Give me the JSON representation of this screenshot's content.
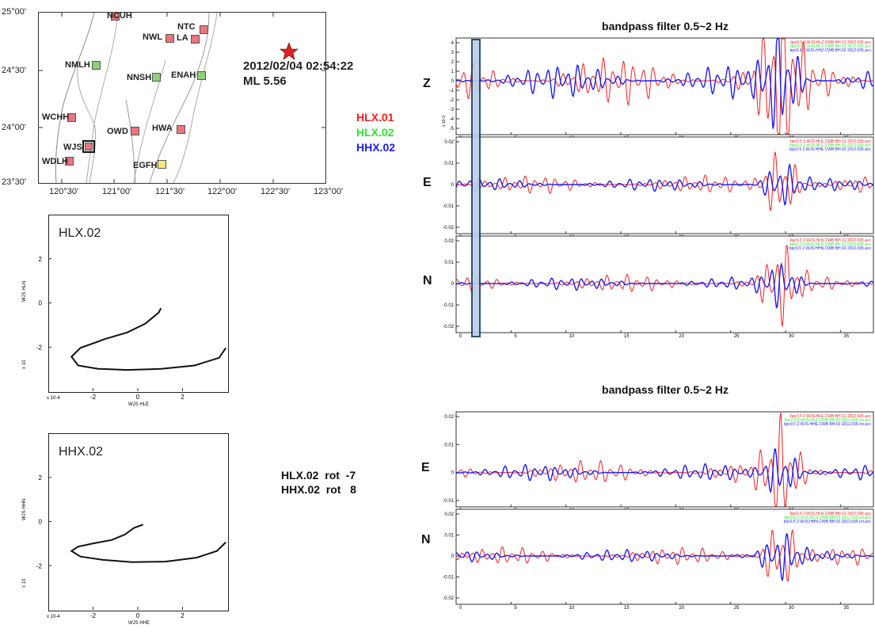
{
  "map": {
    "lat_labels": [
      "25°00'",
      "24°30'",
      "24°00'",
      "23°30'"
    ],
    "lon_labels": [
      "120°30'",
      "121°00'",
      "121°30'",
      "122°00'",
      "122°30'",
      "123°00'"
    ],
    "stations": [
      {
        "name": "NCUH",
        "color": "#e8757f"
      },
      {
        "name": "NTC",
        "color": "#e8757f"
      },
      {
        "name": "NWL",
        "color": "#e8757f"
      },
      {
        "name": "LA",
        "color": "#e8757f"
      },
      {
        "name": "NMLH",
        "color": "#8fd07a"
      },
      {
        "name": "NNSH",
        "color": "#8fd07a"
      },
      {
        "name": "ENAH",
        "color": "#8fd07a"
      },
      {
        "name": "WCHH",
        "color": "#e8757f"
      },
      {
        "name": "OWD",
        "color": "#e8757f"
      },
      {
        "name": "HWA",
        "color": "#e8757f"
      },
      {
        "name": "WJS",
        "color": "#e8757f"
      },
      {
        "name": "EGFH",
        "color": "#f3ea7a"
      },
      {
        "name": "WDLH",
        "color": "#e8757f"
      }
    ],
    "event_time": "2012/02/04 02:54:22",
    "event_magnitude": "ML 5.56"
  },
  "legend": [
    {
      "label": "HLX.01",
      "color": "#ff1a1a"
    },
    {
      "label": "HLX.02",
      "color": "#2ee62e"
    },
    {
      "label": "HHX.02",
      "color": "#1a1aff"
    }
  ],
  "rotation": {
    "line1": "HLX.02  rot  -7",
    "line2": "HHX.02  rot   8"
  },
  "chart_data": [
    {
      "type": "line",
      "title": "HLX.02",
      "xlabel": "WJS HLE",
      "ylabel": "WJS HLN",
      "x_exponent": "x 10-4",
      "y_exponent": "x 10",
      "x_ticks": [
        -2,
        0,
        2
      ],
      "y_ticks": [
        2,
        0,
        -2
      ],
      "x": [
        1.0,
        0.9,
        0.3,
        -0.5,
        -1.5,
        -2.6,
        -3.0,
        -2.7,
        -1.8,
        -0.5,
        1.0,
        2.5,
        3.6,
        3.9
      ],
      "y": [
        -0.2,
        -0.4,
        -0.9,
        -1.3,
        -1.6,
        -2.0,
        -2.4,
        -2.8,
        -2.95,
        -3.0,
        -2.95,
        -2.8,
        -2.45,
        -2.0
      ]
    },
    {
      "type": "line",
      "title": "HHX.02",
      "xlabel": "WJS HHE",
      "ylabel": "WJS HHN",
      "x_exponent": "x 10-4",
      "y_exponent": "x 10",
      "x_ticks": [
        -2,
        0,
        2
      ],
      "y_ticks": [
        2,
        0,
        -2
      ],
      "x": [
        0.2,
        -0.2,
        -0.6,
        -1.2,
        -2.0,
        -2.7,
        -3.0,
        -2.6,
        -1.6,
        -0.3,
        1.2,
        2.6,
        3.5,
        3.9
      ],
      "y": [
        -0.1,
        -0.25,
        -0.55,
        -0.8,
        -0.95,
        -1.1,
        -1.3,
        -1.55,
        -1.7,
        -1.8,
        -1.78,
        -1.6,
        -1.3,
        -0.9
      ]
    },
    {
      "type": "line",
      "title": "bandpass filter 0.5~2 Hz",
      "panels": [
        {
          "component": "Z",
          "y_ticks": [
            4,
            3,
            2,
            1,
            0,
            -1,
            -2,
            -3,
            -4,
            -5
          ],
          "y_exponent": "x 10-3",
          "legend": [
            "bpc0.5  2.WJS.HLZ.CWB  BH.01  2012.035.acc",
            "bpc0.5  2.WJS.HLZ.CWB  BH.02  2012.035.acc",
            "bpc0.5  2.WJS.HHZ.CWB  BH.02  2012.035.acc"
          ]
        },
        {
          "component": "E",
          "y_ticks": [
            0.02,
            0.01,
            0.0,
            -0.01,
            -0.02
          ],
          "legend": [
            "bpc0.5  2.WJS.HLE.CWB  BH.01  2012.035.acc",
            "bpc0.5  2.WJS.HLE.CWB  BH.02  2012.035.acc",
            "bpc0.5  2.WJS.HHE.CWB  BH.02  2012.035.acc"
          ]
        },
        {
          "component": "N",
          "y_ticks": [
            0.02,
            0.01,
            0.0,
            -0.01,
            -0.02
          ],
          "legend": [
            "bpc0.5  2.WJS.HLN.CWB  BH.01  2012.035.acc",
            "bpc0.5  2.WJS.HLN.CWB  BH.02  2012.035.acc",
            "bpc0.5  2.WJS.HHN.CWB  BH.02  2012.035.acc"
          ]
        }
      ],
      "x_ticks": [
        0,
        5,
        10,
        15,
        20,
        25,
        30,
        35
      ],
      "xlim": [
        0,
        38
      ]
    },
    {
      "type": "line",
      "title": "bandpass filter 0.5~2 Hz",
      "panels": [
        {
          "component": "E",
          "y_ticks": [
            0.02,
            0.01,
            0.0,
            -0.01
          ],
          "legend": [
            "bpc0.5  2.WJS.HLE.CWB  BH.01  2012.035.acc",
            "bpc0.5  2.WJS.HLE.CWB  BH.02  2012.035.rot.acc",
            "bpc0.5  2.WJS.HHE.CWB  BH.02  2012.035.rot.acc"
          ]
        },
        {
          "component": "N",
          "y_ticks": [
            0.02,
            0.01,
            0.0,
            -0.01,
            -0.02
          ],
          "legend": [
            "bpc0.5  2.WJS.HLN.CWB  BH.01  2012.035.acc",
            "bpc0.5  2.WJS.HLN.CWB  BH.02  2012.035.rot.acc",
            "bpc0.5  2.WJS.HHN.CWB  BH.02  2012.035.rot.acc"
          ]
        }
      ],
      "x_ticks": [
        0,
        5,
        10,
        15,
        20,
        25,
        30,
        35
      ],
      "xlim": [
        0,
        38
      ]
    }
  ]
}
